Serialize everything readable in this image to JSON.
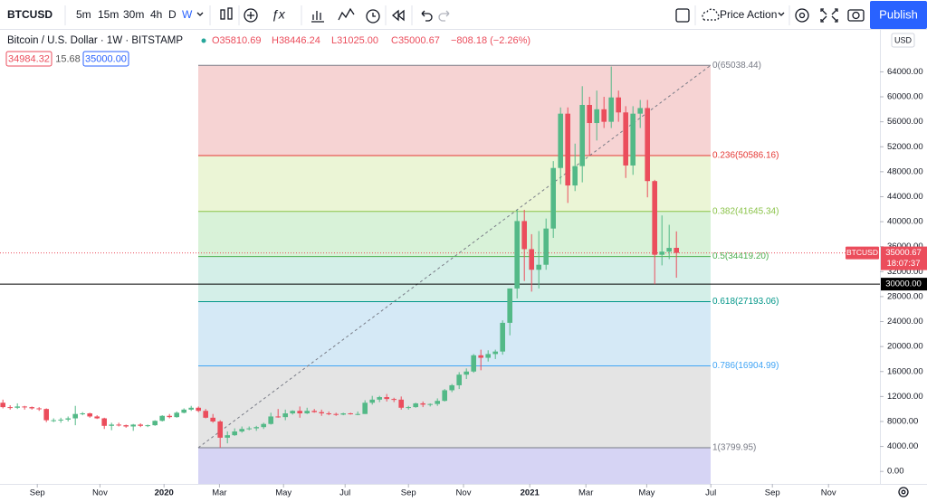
{
  "toolbar": {
    "symbol": "BTCUSD",
    "intervals": [
      "5m",
      "15m",
      "30m",
      "4h",
      "D",
      "W"
    ],
    "template": "Price Action",
    "publish": "Publish"
  },
  "legend": {
    "title": "Bitcoin / U.S. Dollar · 1W · BITSTAMP",
    "ohlc": [
      "O35810.69",
      "H38446.24",
      "L31025.00",
      "C35000.67"
    ],
    "change": "−808.18 (−2.26%)",
    "bid": "34984.32",
    "spread": "15.68",
    "ask": "35000.00"
  },
  "chart_data": {
    "type": "candlestick",
    "currency": "USD",
    "categories": [
      null,
      null,
      null,
      null,
      null,
      null,
      null,
      null,
      null,
      null,
      null,
      null,
      null,
      null,
      null,
      null,
      null,
      null,
      null,
      null,
      null,
      null,
      null,
      null,
      null,
      null,
      null,
      null,
      null,
      null,
      null,
      null,
      null,
      null,
      null,
      null,
      null,
      null,
      null,
      null,
      null,
      null,
      null,
      null,
      null,
      null,
      null,
      null,
      null,
      null,
      null,
      null,
      null,
      null,
      null,
      null,
      null,
      null,
      null,
      null,
      null,
      null,
      null,
      null,
      null,
      null,
      null,
      null,
      null,
      null,
      null,
      null,
      null,
      null,
      null,
      null,
      null,
      null,
      null,
      null,
      null,
      null,
      null,
      null,
      null,
      null,
      null,
      null,
      null,
      null,
      null,
      null,
      null,
      null
    ],
    "open": [
      11000,
      10300,
      10200,
      10400,
      10300,
      10100,
      10000,
      8200,
      8200,
      8300,
      8500,
      9200,
      9300,
      8800,
      8500,
      7300,
      7500,
      7400,
      7200,
      7500,
      7300,
      7400,
      8100,
      8900,
      8700,
      9400,
      9900,
      10200,
      9700,
      8600,
      8000,
      5400,
      5800,
      6400,
      6800,
      6900,
      7100,
      7600,
      8800,
      8700,
      9300,
      9700,
      9300,
      9700,
      9500,
      9300,
      9200,
      9100,
      9300,
      9200,
      9200,
      11000,
      11500,
      11900,
      11600,
      11500,
      10200,
      10300,
      10900,
      10700,
      10800,
      11300,
      13000,
      13800,
      15500,
      16000,
      18600,
      18200,
      18800,
      19200,
      23800,
      29300,
      40100,
      35600,
      32300,
      33100,
      38900,
      48600,
      57300,
      45800,
      48900,
      58700,
      55800,
      58000,
      56000,
      59900,
      57500,
      49000,
      57300,
      58200,
      46500,
      34700,
      35200,
      35810.69
    ],
    "high": [
      11500,
      10600,
      10900,
      10500,
      10400,
      10300,
      10100,
      8500,
      8600,
      8800,
      10500,
      9500,
      9400,
      9000,
      8600,
      7800,
      7800,
      7500,
      7600,
      7700,
      7500,
      8200,
      9000,
      9200,
      9600,
      10100,
      10500,
      10400,
      10000,
      9200,
      8200,
      6400,
      6900,
      7200,
      7200,
      7300,
      7800,
      9400,
      10000,
      9900,
      9800,
      10400,
      10200,
      10000,
      9900,
      9600,
      9400,
      9400,
      9400,
      9600,
      11400,
      12100,
      12100,
      12400,
      11800,
      12000,
      10500,
      11000,
      11200,
      10900,
      11700,
      13200,
      14000,
      15900,
      16500,
      18800,
      19500,
      19400,
      19500,
      24200,
      29300,
      41900,
      41900,
      38000,
      38500,
      40500,
      49700,
      58300,
      58300,
      52500,
      61700,
      60000,
      61000,
      60000,
      64850,
      61000,
      58500,
      58500,
      59500,
      59500,
      46700,
      41000,
      39500,
      38446.24
    ],
    "low": [
      10100,
      9900,
      10000,
      9900,
      9900,
      9700,
      7900,
      7900,
      7800,
      8000,
      7400,
      9000,
      8600,
      8400,
      6800,
      6600,
      7200,
      7000,
      6500,
      7100,
      7100,
      7300,
      8000,
      8500,
      8600,
      9300,
      9700,
      9500,
      8500,
      7800,
      3800,
      4500,
      5700,
      6200,
      6600,
      6500,
      6800,
      7500,
      8600,
      8200,
      9100,
      8600,
      9200,
      9400,
      8900,
      9000,
      8900,
      9000,
      9100,
      9000,
      9200,
      10700,
      11100,
      11200,
      11100,
      9900,
      9900,
      10200,
      10300,
      10400,
      10500,
      11200,
      12700,
      13200,
      14800,
      15800,
      16200,
      17600,
      18000,
      18700,
      21800,
      27700,
      30500,
      28800,
      29300,
      32300,
      37400,
      46000,
      43000,
      44900,
      46300,
      50500,
      53000,
      55000,
      55000,
      56000,
      47000,
      47500,
      55000,
      43900,
      30000,
      33000,
      34000,
      31025
    ],
    "close": [
      10300,
      10200,
      10400,
      10300,
      10100,
      10000,
      8200,
      8200,
      8300,
      8500,
      9200,
      9300,
      8800,
      8500,
      7300,
      7500,
      7400,
      7200,
      7500,
      7300,
      7400,
      8100,
      8900,
      8700,
      9400,
      9900,
      10200,
      9700,
      8600,
      8000,
      5400,
      5800,
      6400,
      6800,
      6900,
      7100,
      7600,
      8800,
      8700,
      9300,
      9700,
      9300,
      9700,
      9500,
      9300,
      9200,
      9100,
      9300,
      9200,
      9200,
      11000,
      11500,
      11900,
      11600,
      11500,
      10200,
      10300,
      10900,
      10700,
      10800,
      11300,
      13000,
      13800,
      15500,
      16000,
      18600,
      18200,
      18800,
      19200,
      23800,
      29300,
      40100,
      35600,
      32300,
      33100,
      38900,
      48600,
      57300,
      45800,
      48900,
      58700,
      55800,
      58000,
      56000,
      59900,
      57500,
      49000,
      57300,
      58200,
      46500,
      34700,
      35200,
      35800,
      35000.67
    ],
    "up_color": "#53b987",
    "down_color": "#eb4d5c",
    "ylim": [
      -2000,
      70000
    ],
    "yticks": [
      {
        "value": 0,
        "label": "0.00"
      },
      {
        "value": 4000,
        "label": "4000.00"
      },
      {
        "value": 8000,
        "label": "8000.00"
      },
      {
        "value": 12000,
        "label": "12000.00"
      },
      {
        "value": 16000,
        "label": "16000.00"
      },
      {
        "value": 20000,
        "label": "20000.00"
      },
      {
        "value": 24000,
        "label": "24000.00"
      },
      {
        "value": 28000,
        "label": "28000.00"
      },
      {
        "value": 32000,
        "label": "32000.00"
      },
      {
        "value": 36000,
        "label": "36000.00"
      },
      {
        "value": 40000,
        "label": "40000.00"
      },
      {
        "value": 44000,
        "label": "44000.00"
      },
      {
        "value": 48000,
        "label": "48000.00"
      },
      {
        "value": 52000,
        "label": "52000.00"
      },
      {
        "value": 56000,
        "label": "56000.00"
      },
      {
        "value": 60000,
        "label": "60000.00"
      },
      {
        "value": 64000,
        "label": "64000.00"
      }
    ],
    "xlim": [
      -0.4,
      121.1
    ],
    "xticks": [
      {
        "value": 4.75,
        "label": "Sep"
      },
      {
        "value": 13.4,
        "label": "Nov"
      },
      {
        "value": 22.25,
        "label": "2020"
      },
      {
        "value": 29.9,
        "label": "Mar"
      },
      {
        "value": 38.75,
        "label": "May"
      },
      {
        "value": 47.25,
        "label": "Jul"
      },
      {
        "value": 56,
        "label": "Sep"
      },
      {
        "value": 63.6,
        "label": "Nov"
      },
      {
        "value": 72.75,
        "label": "2021"
      },
      {
        "value": 80.5,
        "label": "Mar"
      },
      {
        "value": 88.9,
        "label": "May"
      },
      {
        "value": 97.75,
        "label": "Jul"
      },
      {
        "value": 106.25,
        "label": "Sep"
      },
      {
        "value": 114,
        "label": "Nov"
      }
    ],
    "fib_levels": [
      {
        "value": 65038.44,
        "label": "0(65038.44)",
        "color": "#787b86",
        "fill": "#f6d3d3"
      },
      {
        "value": 50586.16,
        "label": "0.236(50586.16)",
        "color": "#e53935",
        "fill": "#ebf5d6"
      },
      {
        "value": 41645.34,
        "label": "0.382(41645.34)",
        "color": "#8bc34a",
        "fill": "#d8f2d8"
      },
      {
        "value": 34419.2,
        "label": "0.5(34419.20)",
        "color": "#4caf50",
        "fill": "#d4efe8"
      },
      {
        "value": 27193.06,
        "label": "0.618(27193.06)",
        "color": "#009688",
        "fill": "#d5e9f6"
      },
      {
        "value": 16904.99,
        "label": "0.786(16904.99)",
        "color": "#42a5f5",
        "fill": "#e4e4e4"
      },
      {
        "value": 3799.95,
        "label": "1(3799.95)",
        "color": "#787b86",
        "fill": "#d6d4f4"
      }
    ],
    "horizontal_line": {
      "value": 30000,
      "label": "30000.00",
      "color": "#000000"
    },
    "last_price": {
      "value": 35000.67,
      "label": "35000.67",
      "symbol": "BTCUSD",
      "countdown": "18:07:37",
      "color": "#eb4d5c"
    }
  }
}
